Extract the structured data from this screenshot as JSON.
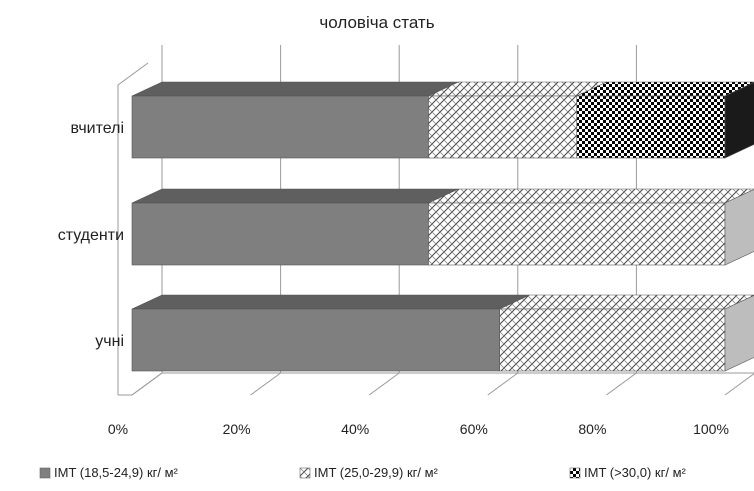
{
  "chart_data": {
    "type": "bar",
    "orientation": "horizontal",
    "stacked": "100%",
    "three_d": true,
    "title": "чоловіча стать",
    "categories": [
      "вчителі",
      "студенти",
      "учні"
    ],
    "series": [
      {
        "name": "IMT (18,5-24,9) кг/ м²",
        "values": [
          50,
          50,
          62
        ],
        "color": "#7f7f7f",
        "pattern": "solid"
      },
      {
        "name": "IMT (25,0-29,9) кг/ м²",
        "values": [
          25,
          50,
          38
        ],
        "color": "#ffffff",
        "pattern": "diagonal-cross-light"
      },
      {
        "name": "IMT (>30,0) кг/ м²",
        "values": [
          25,
          0,
          0
        ],
        "color": "#000000",
        "pattern": "checker-dark"
      }
    ],
    "x_ticks": [
      "0%",
      "20%",
      "40%",
      "60%",
      "80%",
      "100%"
    ],
    "xlim": [
      0,
      100
    ],
    "grid": true,
    "legend_position": "bottom"
  }
}
